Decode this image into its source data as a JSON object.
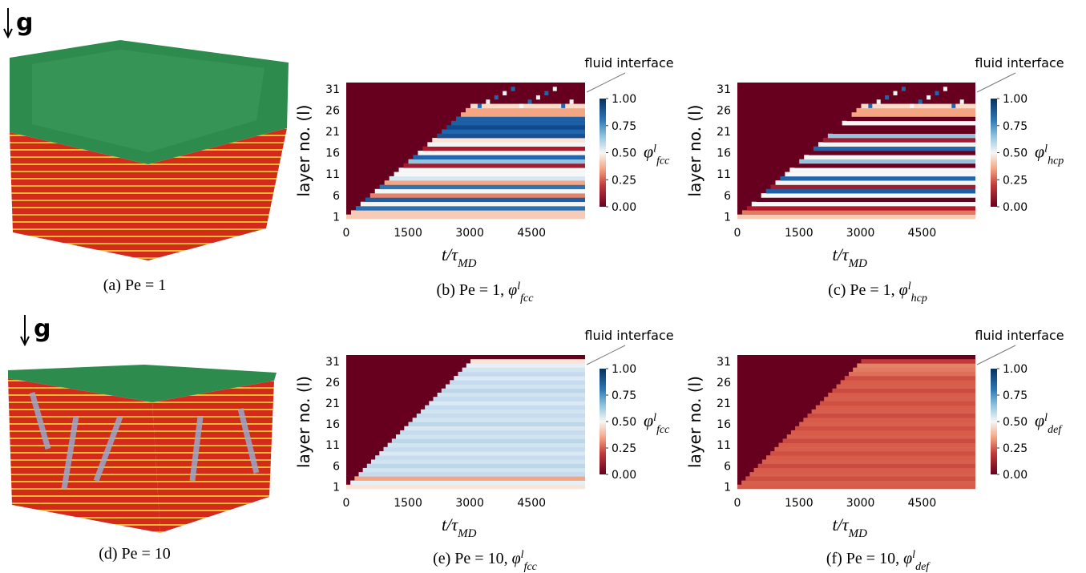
{
  "figure": {
    "panels": [
      {
        "caption": {
          "label": "(a) Pe = 1"
        },
        "gravity": "g"
      },
      {
        "caption": {
          "label": "(b) Pe = 1, ",
          "symbol": "φ",
          "sup": "l",
          "sub": "fcc"
        },
        "heatmap": {
          "ylabel": "layer no. (l)",
          "xlabel": {
            "text": "t/τ",
            "sub": "MD"
          },
          "xlim": [
            0,
            5800
          ],
          "xticks": [
            0,
            1500,
            3000,
            4500
          ],
          "ylim": [
            0.5,
            32.5
          ],
          "yticks": [
            1,
            6,
            11,
            16,
            21,
            26,
            31
          ],
          "clim": [
            0,
            1
          ],
          "cticks": [
            {
              "value": 1,
              "label": "1.00"
            },
            {
              "value": 0.75,
              "label": "0.75"
            },
            {
              "value": 0.5,
              "label": "0.50"
            },
            {
              "value": 0.25,
              "label": "0.25"
            },
            {
              "value": 0,
              "label": "0.00"
            }
          ],
          "colorbar_label": {
            "symbol": "φ",
            "sup": "l",
            "sub": "fcc"
          },
          "annotation": "fluid interface"
        }
      },
      {
        "caption": {
          "label": "(c) Pe = 1, ",
          "symbol": "φ",
          "sup": "l",
          "sub": "hcp"
        },
        "heatmap": {
          "ylabel": "layer no. (l)",
          "xlabel": {
            "text": "t/τ",
            "sub": "MD"
          },
          "xlim": [
            0,
            5800
          ],
          "xticks": [
            0,
            1500,
            3000,
            4500
          ],
          "ylim": [
            0.5,
            32.5
          ],
          "yticks": [
            1,
            6,
            11,
            16,
            21,
            26,
            31
          ],
          "clim": [
            0,
            1
          ],
          "cticks": [
            {
              "value": 1,
              "label": "1.00"
            },
            {
              "value": 0.75,
              "label": "0.75"
            },
            {
              "value": 0.5,
              "label": "0.50"
            },
            {
              "value": 0.25,
              "label": "0.25"
            },
            {
              "value": 0,
              "label": "0.00"
            }
          ],
          "colorbar_label": {
            "symbol": "φ",
            "sup": "l",
            "sub": "hcp"
          },
          "annotation": "fluid interface"
        }
      },
      {
        "caption": {
          "label": "(d) Pe = 10"
        },
        "gravity": "g"
      },
      {
        "caption": {
          "label": "(e) Pe = 10, ",
          "symbol": "φ",
          "sup": "l",
          "sub": "fcc"
        },
        "heatmap": {
          "ylabel": "layer no. (l)",
          "xlabel": {
            "text": "t/τ",
            "sub": "MD"
          },
          "xlim": [
            0,
            5800
          ],
          "xticks": [
            0,
            1500,
            3000,
            4500
          ],
          "ylim": [
            0.5,
            32.5
          ],
          "yticks": [
            1,
            6,
            11,
            16,
            21,
            26,
            31
          ],
          "clim": [
            0,
            1
          ],
          "cticks": [
            {
              "value": 1,
              "label": "1.00"
            },
            {
              "value": 0.75,
              "label": "0.75"
            },
            {
              "value": 0.5,
              "label": "0.50"
            },
            {
              "value": 0.25,
              "label": "0.25"
            },
            {
              "value": 0,
              "label": "0.00"
            }
          ],
          "colorbar_label": {
            "symbol": "φ",
            "sup": "l",
            "sub": "fcc"
          },
          "annotation": "fluid interface"
        }
      },
      {
        "caption": {
          "label": "(f) Pe = 10, ",
          "symbol": "φ",
          "sup": "l",
          "sub": "def"
        },
        "heatmap": {
          "ylabel": "layer no. (l)",
          "xlabel": {
            "text": "t/τ",
            "sub": "MD"
          },
          "xlim": [
            0,
            5800
          ],
          "xticks": [
            0,
            1500,
            3000,
            4500
          ],
          "ylim": [
            0.5,
            32.5
          ],
          "yticks": [
            1,
            6,
            11,
            16,
            21,
            26,
            31
          ],
          "clim": [
            0,
            1
          ],
          "cticks": [
            {
              "value": 1,
              "label": "1.00"
            },
            {
              "value": 0.75,
              "label": "0.75"
            },
            {
              "value": 0.5,
              "label": "0.50"
            },
            {
              "value": 0.25,
              "label": "0.25"
            },
            {
              "value": 0,
              "label": "0.00"
            }
          ],
          "colorbar_label": {
            "symbol": "φ",
            "sup": "l",
            "sub": "def"
          },
          "annotation": "fluid interface"
        }
      }
    ]
  }
}
